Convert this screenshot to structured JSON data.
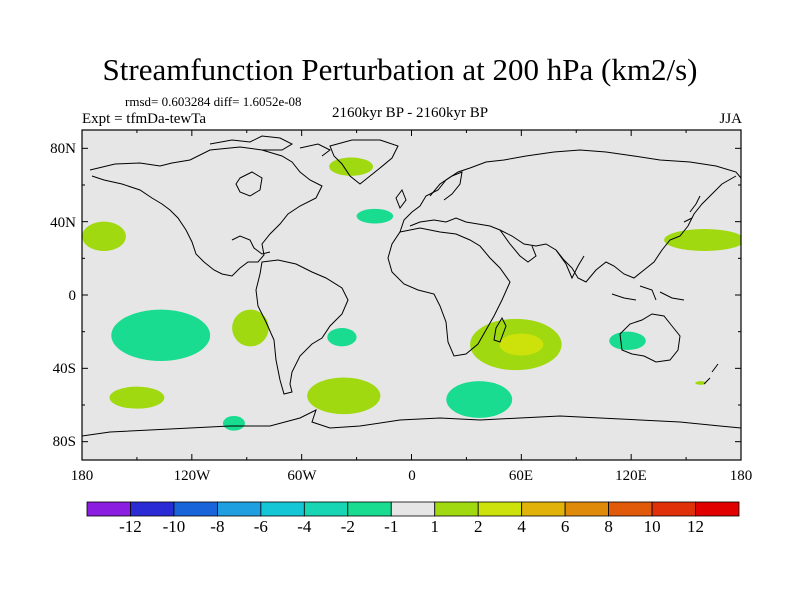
{
  "plot": {
    "title": "Streamfunction Perturbation at 200 hPa (km2/s)",
    "stats": "rmsd= 0.603284 diff= 1.6052e-08",
    "expt": "Expt = tfmDa-tewTa",
    "period": "2160kyr BP - 2160kyr BP",
    "season": "JJA"
  },
  "axes": {
    "lat_labels": [
      "80N",
      "40N",
      "0",
      "40S",
      "80S"
    ],
    "lon_labels": [
      "180",
      "120W",
      "60W",
      "0",
      "60E",
      "120E",
      "180"
    ]
  },
  "colorbar": {
    "labels": [
      "-12",
      "-10",
      "-8",
      "-6",
      "-4",
      "-2",
      "-1",
      "1",
      "2",
      "4",
      "6",
      "8",
      "10",
      "12"
    ],
    "colors": [
      "#8a1de0",
      "#2b2bd6",
      "#1a64d9",
      "#1f9fe0",
      "#15c6d6",
      "#18d6b4",
      "#19dc90",
      "#e6e6e6",
      "#a0d910",
      "#cce20a",
      "#e0b20a",
      "#e08a0a",
      "#e05a0a",
      "#e0300a",
      "#e00000"
    ]
  },
  "chart_data": {
    "type": "contour-map",
    "title": "Streamfunction Perturbation at 200 hPa (km2/s)",
    "projection": "cylindrical equidistant",
    "lon_range": [
      -180,
      180
    ],
    "lat_range": [
      -90,
      90
    ],
    "levels": [
      -12,
      -10,
      -8,
      -6,
      -4,
      -2,
      -1,
      1,
      2,
      4,
      6,
      8,
      10,
      12
    ],
    "colors": {
      "background": "#e6e6e6",
      "neg_1_2": "#19dc90",
      "pos_1_2": "#a0d910",
      "pos_2_4": "#cce20a",
      "pos_4_6": "#e0b20a"
    },
    "anomalies": [
      {
        "name": "greenland",
        "lon": -33,
        "lat": 70,
        "rlon": 12,
        "rlat": 5,
        "band": "1-2"
      },
      {
        "name": "north-atlantic",
        "lon": -20,
        "lat": 43,
        "rlon": 10,
        "rlat": 4,
        "band": "-2 to -1"
      },
      {
        "name": "north-pacific-west",
        "lon": -168,
        "lat": 32,
        "rlon": 12,
        "rlat": 8,
        "band": "1-2"
      },
      {
        "name": "north-pacific-east",
        "lon": 160,
        "lat": 30,
        "rlon": 22,
        "rlat": 6,
        "band": "1-2"
      },
      {
        "name": "south-pacific",
        "lon": -137,
        "lat": -22,
        "rlon": 27,
        "rlat": 14,
        "band": "-2 to -1"
      },
      {
        "name": "south-america-west",
        "lon": -88,
        "lat": -18,
        "rlon": 10,
        "rlat": 10,
        "band": "1-2"
      },
      {
        "name": "south-atlantic",
        "lon": -38,
        "lat": -23,
        "rlon": 8,
        "rlat": 5,
        "band": "-2 to -1"
      },
      {
        "name": "madagascar",
        "lon": 57,
        "lat": -27,
        "rlon": 25,
        "rlat": 14,
        "band": "1-2"
      },
      {
        "name": "madagascar-core",
        "lon": 60,
        "lat": -27,
        "rlon": 12,
        "rlat": 6,
        "band": "2-4"
      },
      {
        "name": "australia",
        "lon": 118,
        "lat": -25,
        "rlon": 10,
        "rlat": 5,
        "band": "-2 to -1"
      },
      {
        "name": "south-pacific-low",
        "lon": -150,
        "lat": -56,
        "rlon": 15,
        "rlat": 6,
        "band": "1-2"
      },
      {
        "name": "southern-ocean-west",
        "lon": -37,
        "lat": -55,
        "rlon": 20,
        "rlat": 10,
        "band": "1-2"
      },
      {
        "name": "southern-ocean-east",
        "lon": 37,
        "lat": -57,
        "rlon": 18,
        "rlat": 10,
        "band": "-2 to -1"
      },
      {
        "name": "antarctic-pacific",
        "lon": -97,
        "lat": -70,
        "rlon": 6,
        "rlat": 4,
        "band": "-2 to -1"
      },
      {
        "name": "tasman",
        "lon": 158,
        "lat": -48,
        "rlon": 3,
        "rlat": 1,
        "band": "1-2"
      }
    ]
  }
}
